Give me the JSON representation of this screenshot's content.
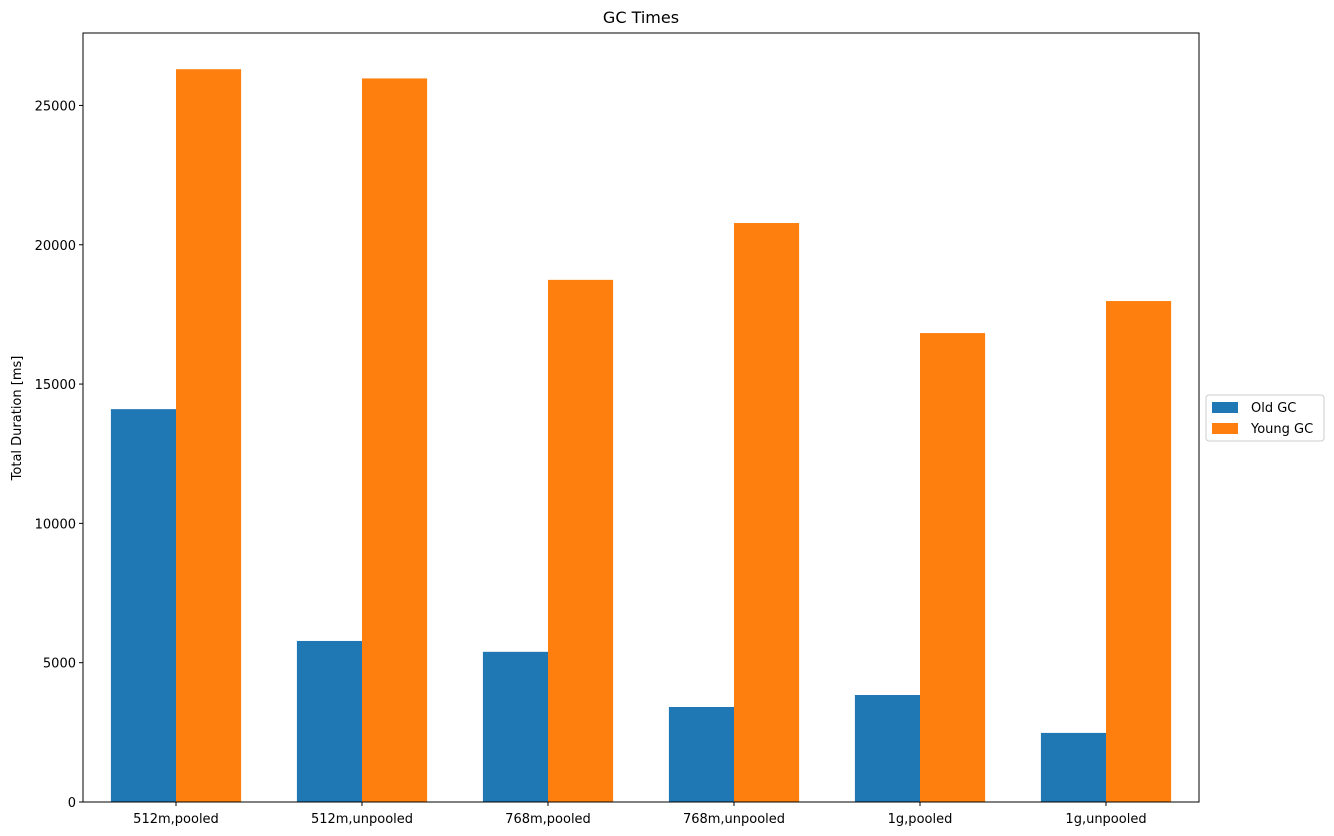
{
  "chart_data": {
    "type": "bar",
    "title": "GC Times",
    "xlabel": "",
    "ylabel": "Total Duration [ms]",
    "categories": [
      "512m,pooled",
      "512m,unpooled",
      "768m,pooled",
      "768m,unpooled",
      "1g,pooled",
      "1g,unpooled"
    ],
    "series": [
      {
        "name": "Old GC",
        "color": "#1f77b4",
        "values": [
          14100,
          5780,
          5390,
          3410,
          3840,
          2480
        ]
      },
      {
        "name": "Young GC",
        "color": "#ff7f0e",
        "values": [
          26300,
          25970,
          18740,
          20780,
          16830,
          17980
        ]
      }
    ],
    "ylim": [
      0,
      27600
    ],
    "yticks": [
      0,
      5000,
      10000,
      15000,
      20000,
      25000
    ],
    "grid": false,
    "legend_position": "outside-right"
  }
}
